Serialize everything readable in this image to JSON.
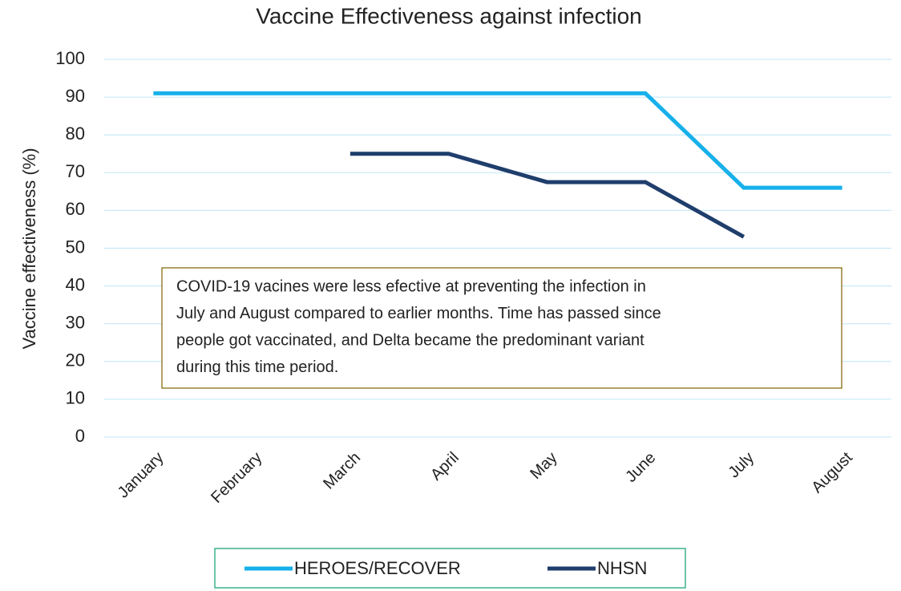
{
  "chart_data": {
    "type": "line",
    "title": "Vaccine Effectiveness against infection",
    "y_label": "Vaccine effectiveness (%)",
    "categories": [
      "January",
      "February",
      "March",
      "April",
      "May",
      "June",
      "July",
      "August"
    ],
    "series": [
      {
        "name": "HEROES/RECOVER",
        "color": "#17b0ea",
        "values": [
          91,
          91,
          91,
          91,
          91,
          91,
          66,
          66
        ]
      },
      {
        "name": "NHSN",
        "color": "#1f3e6c",
        "values": [
          null,
          null,
          75,
          75,
          67.5,
          67.5,
          53,
          null
        ]
      }
    ],
    "ylim": [
      0,
      100
    ],
    "yticks": [
      0,
      10,
      20,
      30,
      40,
      50,
      60,
      70,
      80,
      90,
      100
    ],
    "grid": true,
    "legend": "bottom",
    "annotation": [
      "COVID-19 vacines were less efective at preventing the infection in",
      "July and August compared to earlier months. Time has passed since",
      "people got vaccinated, and Delta became the predominant variant",
      "during this time period."
    ]
  }
}
